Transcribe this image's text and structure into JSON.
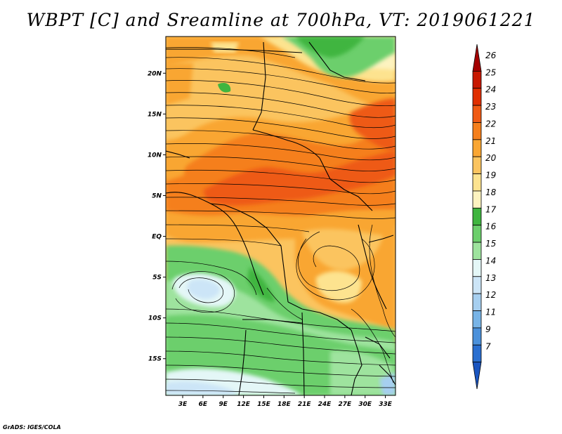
{
  "title": "WBPT [C] and Sreamline at 700hPa, VT: 2019061221",
  "footer": "GrADS: IGES/COLA",
  "map": {
    "lat_labels": [
      "20N",
      "15N",
      "10N",
      "5N",
      "EQ",
      "5S",
      "10S",
      "15S"
    ],
    "lat_values": [
      20,
      15,
      10,
      5,
      0,
      -5,
      -10,
      -15
    ],
    "lon_labels": [
      "3E",
      "6E",
      "9E",
      "12E",
      "15E",
      "18E",
      "21E",
      "24E",
      "27E",
      "30E",
      "33E"
    ],
    "lon_values": [
      3,
      6,
      9,
      12,
      15,
      18,
      21,
      24,
      27,
      30,
      33
    ],
    "lat_range": [
      -19.5,
      24.5
    ],
    "lon_range": [
      0.5,
      34.5
    ],
    "variable": "WBPT [C]",
    "level": "700hPa"
  },
  "colorbar": {
    "labels": [
      "26",
      "25",
      "24",
      "23",
      "22",
      "21",
      "20",
      "19",
      "18",
      "17",
      "16",
      "15",
      "14",
      "13",
      "12",
      "11",
      "9",
      "7"
    ],
    "colors": [
      "#a40000",
      "#c81800",
      "#e02f00",
      "#f05a14",
      "#f57f1c",
      "#f9a633",
      "#fbc45f",
      "#fde38f",
      "#fdf3c0",
      "#3fb53f",
      "#6ccf6c",
      "#9ee39e",
      "#e4f7f7",
      "#cce5f7",
      "#a6cff0",
      "#78b4e7",
      "#4b91db",
      "#2a6fd0",
      "#1a55c0"
    ]
  }
}
